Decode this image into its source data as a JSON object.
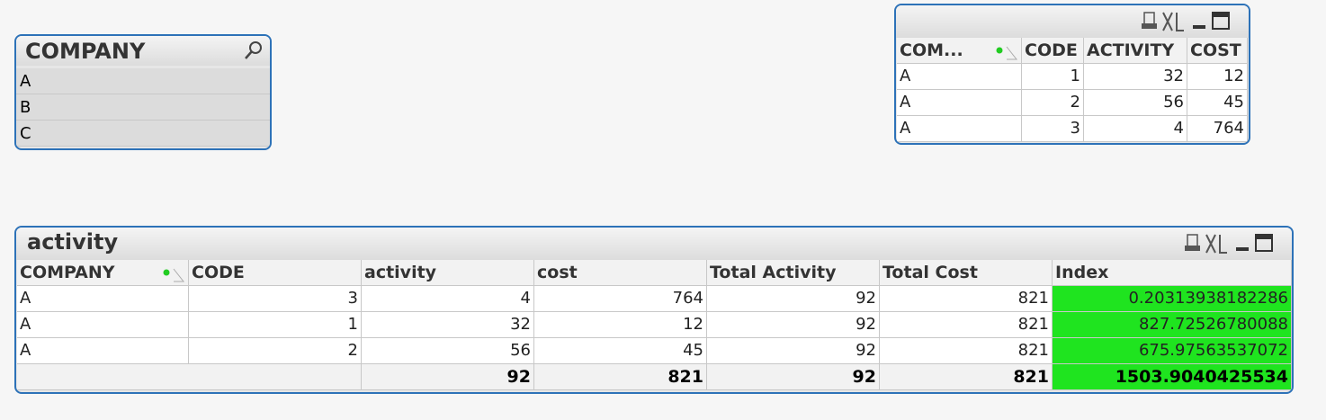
{
  "company_listbox": {
    "title": "COMPANY",
    "items": [
      "A",
      "B",
      "C"
    ]
  },
  "table_box": {
    "columns": [
      "COM...",
      "CODE",
      "ACTIVITY",
      "COST"
    ],
    "rows": [
      [
        "A",
        1,
        32,
        12
      ],
      [
        "A",
        2,
        56,
        45
      ],
      [
        "A",
        3,
        4,
        764
      ]
    ]
  },
  "activity_table": {
    "title": "activity",
    "columns": [
      "COMPANY",
      "CODE",
      "activity",
      "cost",
      "Total Activity",
      "Total Cost",
      "Index"
    ],
    "rows": [
      [
        "A",
        3,
        4,
        764,
        92,
        821,
        0.20313938182286
      ],
      [
        "A",
        1,
        32,
        12,
        92,
        821,
        827.72526780088
      ],
      [
        "A",
        2,
        56,
        45,
        92,
        821,
        675.97563537072
      ]
    ],
    "totals": [
      92,
      821,
      92,
      821,
      1503.9040425534
    ]
  }
}
